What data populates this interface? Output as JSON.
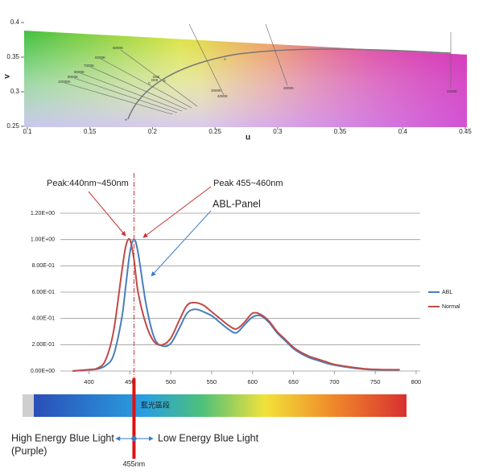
{
  "chart_data": [
    {
      "type": "chromaticity",
      "x_label": "u",
      "y_label": "v",
      "xlim": [
        0.1,
        0.45
      ],
      "xticks": [
        0.1,
        0.15,
        0.2,
        0.25,
        0.3,
        0.35,
        0.4,
        0.45
      ],
      "ylim": [
        0.25,
        0.4
      ],
      "yticks": [
        0.25,
        0.3,
        0.35,
        0.4
      ],
      "locus_labels": [
        "5000K",
        "6000K",
        "7000K",
        "8000K",
        "9000K",
        "10000K",
        "A",
        "D55",
        "D65",
        "C",
        "E",
        "2000K",
        "3000K",
        "4000K",
        "1500K",
        "∞"
      ]
    },
    {
      "type": "line",
      "x": [
        380,
        400,
        410,
        420,
        430,
        440,
        445,
        450,
        455,
        460,
        470,
        480,
        490,
        500,
        510,
        520,
        530,
        540,
        550,
        560,
        570,
        580,
        590,
        600,
        610,
        620,
        630,
        640,
        650,
        660,
        670,
        680,
        690,
        700,
        720,
        740,
        760,
        780
      ],
      "series": [
        {
          "name": "ABL",
          "color": "#4a7ebb",
          "values": [
            0,
            0.01,
            0.015,
            0.04,
            0.12,
            0.4,
            0.65,
            0.9,
            1.0,
            0.9,
            0.5,
            0.25,
            0.19,
            0.21,
            0.32,
            0.44,
            0.47,
            0.45,
            0.42,
            0.37,
            0.32,
            0.29,
            0.35,
            0.41,
            0.42,
            0.37,
            0.29,
            0.23,
            0.17,
            0.13,
            0.1,
            0.08,
            0.06,
            0.045,
            0.025,
            0.012,
            0.008,
            0.008
          ]
        },
        {
          "name": "Normal",
          "color": "#be4b48",
          "values": [
            0,
            0.01,
            0.02,
            0.08,
            0.3,
            0.75,
            0.95,
            1.0,
            0.85,
            0.6,
            0.35,
            0.22,
            0.2,
            0.25,
            0.38,
            0.5,
            0.52,
            0.5,
            0.45,
            0.4,
            0.35,
            0.32,
            0.37,
            0.44,
            0.43,
            0.38,
            0.3,
            0.24,
            0.18,
            0.14,
            0.11,
            0.09,
            0.07,
            0.05,
            0.03,
            0.015,
            0.01,
            0.01
          ]
        }
      ],
      "xlim": [
        365,
        805
      ],
      "xticks": [
        400,
        450,
        500,
        550,
        600,
        650,
        700,
        750,
        800
      ],
      "ylim": [
        0,
        1.2
      ],
      "yticks": [
        {
          "value": 0,
          "label": "0.00E+00"
        },
        {
          "value": 0.2,
          "label": "2.00E-01"
        },
        {
          "value": 0.4,
          "label": "4.00E-01"
        },
        {
          "value": 0.6,
          "label": "6.00E-01"
        },
        {
          "value": 0.8,
          "label": "8.00E-01"
        },
        {
          "value": 1,
          "label": "1.00E+00"
        },
        {
          "value": 1.2,
          "label": "1.20E+00"
        }
      ],
      "grid": true,
      "legend": "right",
      "annotations": [
        "Peak:440nm~450nm",
        "Peak 455~460nm",
        "ABL-Panel"
      ],
      "marker_x": 455,
      "marker_label": "455nm",
      "spectrum_label": "藍光區段",
      "high_label": "High Energy Blue Light",
      "high_sublabel": "(Purple)",
      "low_label": "Low Energy Blue Light"
    }
  ]
}
